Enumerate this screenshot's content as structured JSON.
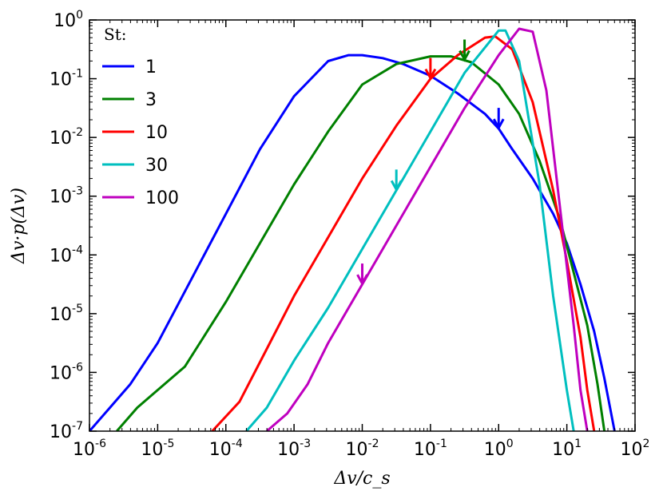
{
  "chart_data": {
    "type": "line",
    "xscale": "log",
    "yscale": "log",
    "xlabel": "Δv/c_s",
    "ylabel": "Δv·p(Δv)",
    "xlim_exp": [
      -6,
      2
    ],
    "ylim_exp": [
      -7,
      0
    ],
    "x_tick_labels": [
      {
        "base": "10",
        "exp": "-6"
      },
      {
        "base": "10",
        "exp": "-5"
      },
      {
        "base": "10",
        "exp": "-4"
      },
      {
        "base": "10",
        "exp": "-3"
      },
      {
        "base": "10",
        "exp": "-2"
      },
      {
        "base": "10",
        "exp": "-1"
      },
      {
        "base": "10",
        "exp": "0"
      },
      {
        "base": "10",
        "exp": "1"
      },
      {
        "base": "10",
        "exp": "2"
      }
    ],
    "y_tick_labels": [
      {
        "base": "10",
        "exp": "-7"
      },
      {
        "base": "10",
        "exp": "-6"
      },
      {
        "base": "10",
        "exp": "-5"
      },
      {
        "base": "10",
        "exp": "-4"
      },
      {
        "base": "10",
        "exp": "-3"
      },
      {
        "base": "10",
        "exp": "-2"
      },
      {
        "base": "10",
        "exp": "-1"
      },
      {
        "base": "10",
        "exp": "0"
      }
    ],
    "legend": {
      "title": "St:",
      "position": "upper-left"
    },
    "series": [
      {
        "name": "1",
        "color": "#0000ff",
        "log_x": [
          -6,
          -5.7,
          -5.4,
          -5.0,
          -4.5,
          -4.0,
          -3.5,
          -3.0,
          -2.5,
          -2.2,
          -2.0,
          -1.7,
          -1.4,
          -1.0,
          -0.6,
          -0.2,
          0.0,
          0.2,
          0.5,
          0.8,
          1.0,
          1.2,
          1.4,
          1.55,
          1.7
        ],
        "log_y": [
          -7.0,
          -6.6,
          -6.2,
          -5.5,
          -4.4,
          -3.3,
          -2.2,
          -1.3,
          -0.7,
          -0.6,
          -0.6,
          -0.65,
          -0.75,
          -0.95,
          -1.25,
          -1.6,
          -1.85,
          -2.2,
          -2.7,
          -3.3,
          -3.8,
          -4.5,
          -5.3,
          -6.1,
          -7.0
        ],
        "arrow_log_x": 0.0
      },
      {
        "name": "3",
        "color": "#008000",
        "log_x": [
          -5.6,
          -5.3,
          -5.0,
          -4.6,
          -4.0,
          -3.5,
          -3.0,
          -2.5,
          -2.0,
          -1.5,
          -1.0,
          -0.7,
          -0.4,
          0.0,
          0.3,
          0.6,
          0.9,
          1.1,
          1.3,
          1.45,
          1.55
        ],
        "log_y": [
          -7.0,
          -6.6,
          -6.3,
          -5.9,
          -4.8,
          -3.8,
          -2.8,
          -1.9,
          -1.1,
          -0.75,
          -0.62,
          -0.62,
          -0.72,
          -1.1,
          -1.6,
          -2.4,
          -3.4,
          -4.3,
          -5.2,
          -6.2,
          -7.0
        ],
        "arrow_log_x": -0.5
      },
      {
        "name": "10",
        "color": "#ff0000",
        "log_x": [
          -4.2,
          -3.8,
          -3.4,
          -3.0,
          -2.5,
          -2.0,
          -1.5,
          -1.0,
          -0.6,
          -0.2,
          -0.05,
          0.2,
          0.5,
          0.8,
          1.0,
          1.2,
          1.3,
          1.4
        ],
        "log_y": [
          -7.0,
          -6.5,
          -5.6,
          -4.7,
          -3.7,
          -2.7,
          -1.8,
          -1.0,
          -0.6,
          -0.3,
          -0.28,
          -0.5,
          -1.4,
          -2.9,
          -4.1,
          -5.4,
          -6.3,
          -7.0
        ],
        "arrow_log_x": -1.0
      },
      {
        "name": "30",
        "color": "#00bfbf",
        "log_x": [
          -3.7,
          -3.4,
          -3.0,
          -2.5,
          -2.0,
          -1.5,
          -1.0,
          -0.5,
          0.0,
          0.1,
          0.3,
          0.6,
          0.8,
          1.0,
          1.1
        ],
        "log_y": [
          -7.0,
          -6.6,
          -5.8,
          -4.9,
          -3.9,
          -2.9,
          -1.9,
          -0.9,
          -0.18,
          -0.18,
          -0.7,
          -2.8,
          -4.7,
          -6.3,
          -7.0
        ],
        "arrow_log_x": -1.5
      },
      {
        "name": "100",
        "color": "#bf00bf",
        "log_x": [
          -3.4,
          -3.1,
          -2.8,
          -2.5,
          -2.0,
          -1.5,
          -1.0,
          -0.5,
          0.0,
          0.3,
          0.5,
          0.7,
          0.9,
          1.1,
          1.2,
          1.3
        ],
        "log_y": [
          -7.0,
          -6.7,
          -6.2,
          -5.5,
          -4.5,
          -3.5,
          -2.5,
          -1.5,
          -0.6,
          -0.15,
          -0.2,
          -1.2,
          -3.2,
          -5.2,
          -6.3,
          -7.0
        ],
        "arrow_log_x": -2.0
      }
    ]
  }
}
